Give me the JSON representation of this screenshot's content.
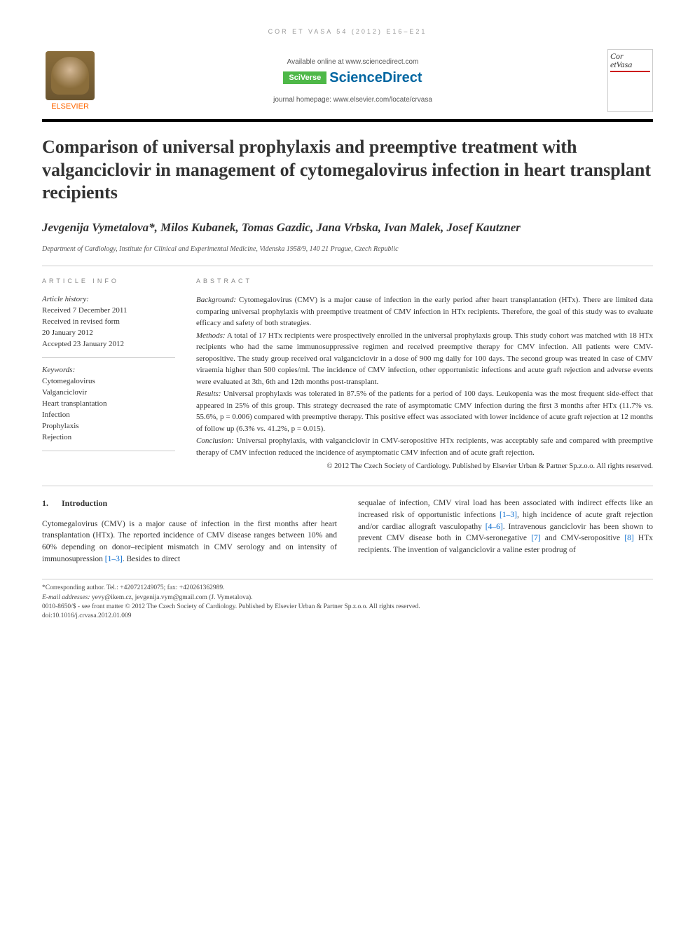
{
  "running_header": "COR ET VASA 54 (2012) e16–e21",
  "banner": {
    "available": "Available online at www.sciencedirect.com",
    "sciverse_badge": "SciVerse",
    "sciverse_name": "ScienceDirect",
    "homepage": "journal homepage: www.elsevier.com/locate/crvasa",
    "elsevier": "ELSEVIER",
    "cover_title_line1": "Cor",
    "cover_title_line2": "etVasa"
  },
  "title": "Comparison of universal prophylaxis and preemptive treatment with valganciclovir in management of cytomegalovirus infection in heart transplant recipients",
  "authors": "Jevgenija Vymetalova*, Milos Kubanek, Tomas Gazdic, Jana Vrbska, Ivan Malek, Josef Kautzner",
  "affiliation": "Department of Cardiology, Institute for Clinical and Experimental Medicine, Videnska 1958/9, 140 21 Prague, Czech Republic",
  "info_label": "ARTICLE INFO",
  "abstract_label": "ABSTRACT",
  "history": {
    "label": "Article history:",
    "received": "Received 7 December 2011",
    "revised1": "Received in revised form",
    "revised2": "20 January 2012",
    "accepted": "Accepted 23 January 2012"
  },
  "keywords": {
    "label": "Keywords:",
    "items": [
      "Cytomegalovirus",
      "Valganciclovir",
      "Heart transplantation",
      "Infection",
      "Prophylaxis",
      "Rejection"
    ]
  },
  "abstract": {
    "bg_label": "Background:",
    "bg_text": " Cytomegalovirus (CMV) is a major cause of infection in the early period after heart transplantation (HTx). There are limited data comparing universal prophylaxis with preemptive treatment of CMV infection in HTx recipients. Therefore, the goal of this study was to evaluate efficacy and safety of both strategies.",
    "methods_label": "Methods:",
    "methods_text": " A total of 17 HTx recipients were prospectively enrolled in the universal prophylaxis group. This study cohort was matched with 18 HTx recipients who had the same immunosuppressive regimen and received preemptive therapy for CMV infection. All patients were CMV-seropositive. The study group received oral valganciclovir in a dose of 900 mg daily for 100 days. The second group was treated in case of CMV viraemia higher than 500 copies/ml. The incidence of CMV infection, other opportunistic infections and acute graft rejection and adverse events were evaluated at 3th, 6th and 12th months post-transplant.",
    "results_label": "Results:",
    "results_text": " Universal prophylaxis was tolerated in 87.5% of the patients for a period of 100 days. Leukopenia was the most frequent side-effect that appeared in 25% of this group. This strategy decreased the rate of asymptomatic CMV infection during the first 3 months after HTx (11.7% vs. 55.6%, p = 0.006) compared with preemptive therapy. This positive effect was associated with lower incidence of acute graft rejection at 12 months of follow up (6.3% vs. 41.2%, p = 0.015).",
    "conclusion_label": "Conclusion:",
    "conclusion_text": " Universal prophylaxis, with valganciclovir in CMV-seropositive HTx recipients, was acceptably safe and compared with preemptive therapy of CMV infection reduced the incidence of asymptomatic CMV infection and of acute graft rejection.",
    "copyright": "© 2012 The Czech Society of Cardiology. Published by Elsevier Urban & Partner Sp.z.o.o. All rights reserved."
  },
  "section1": {
    "num": "1.",
    "title": "Introduction",
    "col1_a": "Cytomegalovirus (CMV) is a major cause of infection in the first months after heart transplantation (HTx). The reported incidence of CMV disease ranges between 10% and 60% depending on donor–recipient mismatch in CMV serology and on intensity of immunosupression ",
    "ref1": "[1–3]",
    "col1_b": ". Besides to direct",
    "col2_a": "sequalae of infection, CMV viral load has been associated with indirect effects like an increased risk of opportunistic infections ",
    "col2_b": ", high incidence of acute graft rejection and/or cardiac allograft vasculopathy ",
    "ref2": "[4–6]",
    "col2_c": ". Intravenous ganciclovir has been shown to prevent CMV disease both in CMV-seronegative ",
    "ref3": "[7]",
    "col2_d": " and CMV-seropositive ",
    "ref4": "[8]",
    "col2_e": " HTx recipients. The invention of valganciclovir a valine ester prodrug of"
  },
  "footnotes": {
    "corr": "*Corresponding author. Tel.: +420721249075; fax: +420261362989.",
    "email_label": "E-mail addresses:",
    "emails": " yevy@ikem.cz, jevgenija.vym@gmail.com (J. Vymetalova).",
    "issn": "0010-8650/$ - see front matter © 2012 The Czech Society of Cardiology. Published by Elsevier Urban & Partner Sp.z.o.o. All rights reserved.",
    "doi": "doi:10.1016/j.crvasa.2012.01.009"
  }
}
